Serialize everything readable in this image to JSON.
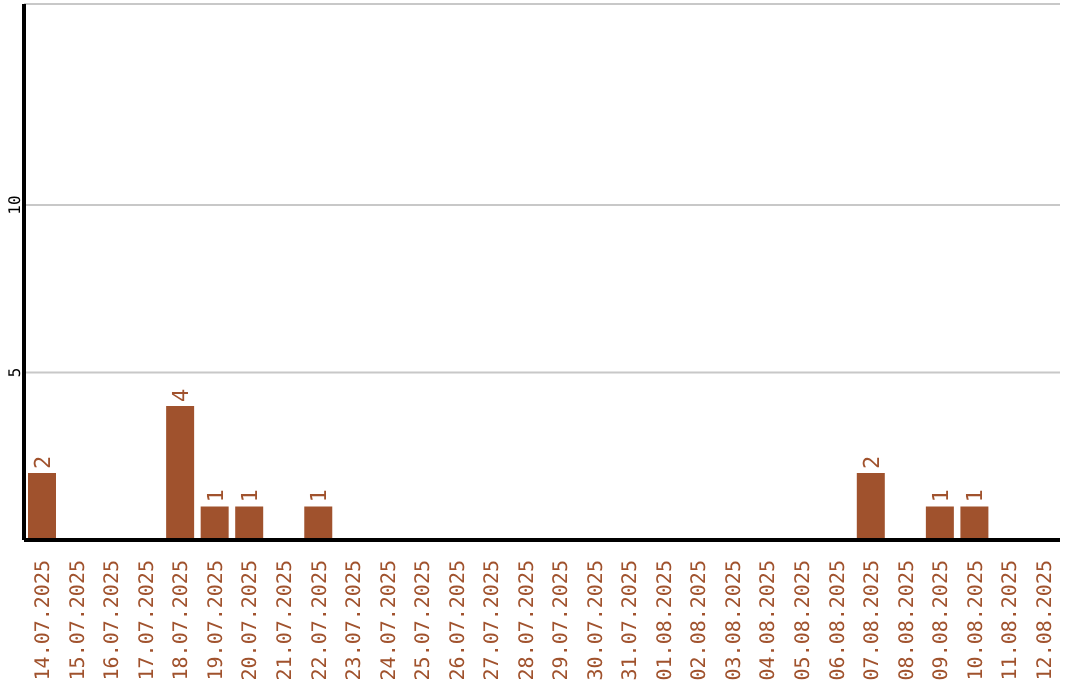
{
  "chart_data": {
    "type": "bar",
    "categories": [
      "14.07.2025",
      "15.07.2025",
      "16.07.2025",
      "17.07.2025",
      "18.07.2025",
      "19.07.2025",
      "20.07.2025",
      "21.07.2025",
      "22.07.2025",
      "23.07.2025",
      "24.07.2025",
      "25.07.2025",
      "26.07.2025",
      "27.07.2025",
      "28.07.2025",
      "29.07.2025",
      "30.07.2025",
      "31.07.2025",
      "01.08.2025",
      "02.08.2025",
      "03.08.2025",
      "04.08.2025",
      "05.08.2025",
      "06.08.2025",
      "07.08.2025",
      "08.08.2025",
      "09.08.2025",
      "10.08.2025",
      "11.08.2025",
      "12.08.2025"
    ],
    "values": [
      2,
      0,
      0,
      0,
      4,
      1,
      1,
      0,
      1,
      0,
      0,
      0,
      0,
      0,
      0,
      0,
      0,
      0,
      0,
      0,
      0,
      0,
      0,
      0,
      2,
      0,
      1,
      1,
      0,
      0
    ],
    "value_labels": [
      "2",
      null,
      null,
      null,
      "4",
      "1",
      "1",
      null,
      "1",
      null,
      null,
      null,
      null,
      null,
      null,
      null,
      null,
      null,
      null,
      null,
      null,
      null,
      null,
      null,
      "2",
      null,
      "1",
      "1",
      null,
      null
    ],
    "color": "#a0522d",
    "ylim": [
      0,
      16
    ],
    "yticks": [
      5,
      10
    ],
    "grid": "y"
  }
}
